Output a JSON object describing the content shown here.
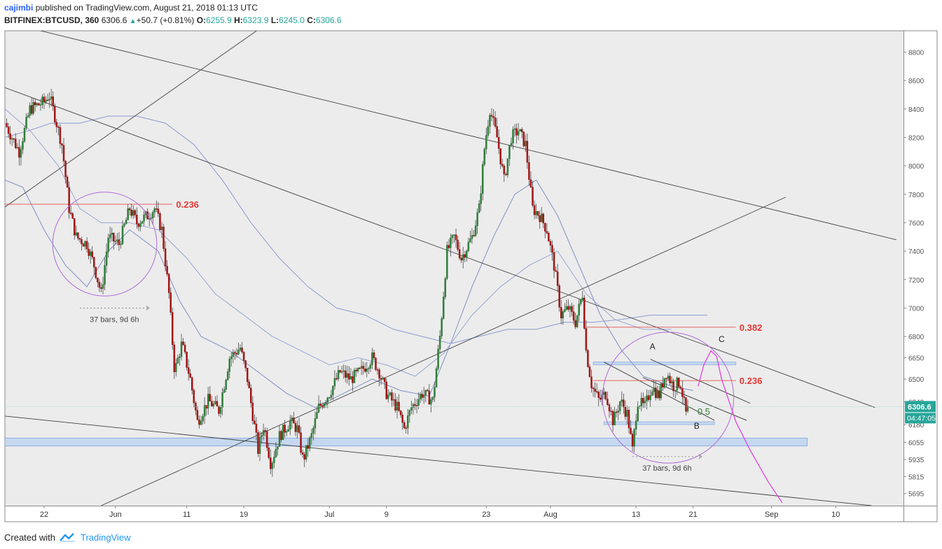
{
  "header": {
    "author": "cajimbi",
    "publish_text": "published on TradingView.com, August 21, 2018 01:13 UTC",
    "symbol": "BITFINEX:BTCUSD, 360",
    "last": "6306.6",
    "arrow": "▲",
    "change": "+50.7 (+0.81%)",
    "o_label": "O:",
    "o_value": "6255.9",
    "h_label": "H:",
    "h_value": "6323.9",
    "l_label": "L:",
    "l_value": "6245.0",
    "c_label": "C:",
    "c_value": "6306.6"
  },
  "footer": {
    "created_with": "Created with",
    "brand": "TradingView"
  },
  "chart_data": {
    "type": "candlestick",
    "title": "",
    "y_ticks": [
      8800,
      8600,
      8400,
      8200,
      8000,
      7800,
      7600,
      7400,
      7200,
      7000,
      6800,
      6650,
      6500,
      6340,
      6180,
      6055,
      5935,
      5815,
      5695
    ],
    "ylim": [
      5610,
      8950
    ],
    "x_tick_labels": [
      {
        "label": "22",
        "day": 0
      },
      {
        "label": "Jun",
        "day": 10
      },
      {
        "label": "11",
        "day": 20
      },
      {
        "label": "19",
        "day": 28
      },
      {
        "label": "Jul",
        "day": 40
      },
      {
        "label": "9",
        "day": 48
      },
      {
        "label": "23",
        "day": 62
      },
      {
        "label": "Aug",
        "day": 71
      },
      {
        "label": "13",
        "day": 83
      },
      {
        "label": "21",
        "day": 91
      },
      {
        "label": "Sep",
        "day": 102
      },
      {
        "label": "10",
        "day": 111
      }
    ],
    "xlim_days": [
      -5.5,
      120.5
    ],
    "candles_per_day": 4,
    "close_path": [
      [
        -5.5,
        8300
      ],
      [
        -3.5,
        8100
      ],
      [
        -2,
        8400
      ],
      [
        0,
        8450
      ],
      [
        0.7,
        8500
      ],
      [
        1.5,
        8350
      ],
      [
        2.5,
        8150
      ],
      [
        3.5,
        7700
      ],
      [
        4.5,
        7500
      ],
      [
        6,
        7450
      ],
      [
        7,
        7300
      ],
      [
        8,
        7100
      ],
      [
        9,
        7500
      ],
      [
        10.5,
        7450
      ],
      [
        12,
        7700
      ],
      [
        13,
        7600
      ],
      [
        14.5,
        7650
      ],
      [
        15.5,
        7700
      ],
      [
        16.5,
        7550
      ],
      [
        17.5,
        7100
      ],
      [
        18.3,
        6550
      ],
      [
        19.3,
        6750
      ],
      [
        20.5,
        6500
      ],
      [
        21.5,
        6200
      ],
      [
        23,
        6350
      ],
      [
        24.5,
        6280
      ],
      [
        26,
        6650
      ],
      [
        27.5,
        6720
      ],
      [
        28.5,
        6500
      ],
      [
        30,
        6000
      ],
      [
        30.8,
        6180
      ],
      [
        31.8,
        5900
      ],
      [
        33,
        6100
      ],
      [
        34.5,
        6200
      ],
      [
        35.5,
        6150
      ],
      [
        36.3,
        5930
      ],
      [
        37.5,
        6100
      ],
      [
        38.5,
        6300
      ],
      [
        40,
        6400
      ],
      [
        41.5,
        6550
      ],
      [
        43,
        6500
      ],
      [
        44.5,
        6560
      ],
      [
        46,
        6650
      ],
      [
        47,
        6550
      ],
      [
        48,
        6400
      ],
      [
        49.5,
        6300
      ],
      [
        50.5,
        6150
      ],
      [
        51.5,
        6300
      ],
      [
        53,
        6400
      ],
      [
        54.5,
        6350
      ],
      [
        55.5,
        6800
      ],
      [
        56.5,
        7400
      ],
      [
        57.5,
        7500
      ],
      [
        58.5,
        7350
      ],
      [
        60,
        7500
      ],
      [
        61,
        7700
      ],
      [
        61.8,
        8150
      ],
      [
        62.5,
        8400
      ],
      [
        63.5,
        8200
      ],
      [
        64.5,
        7900
      ],
      [
        65.5,
        8200
      ],
      [
        66.5,
        8250
      ],
      [
        67.5,
        8150
      ],
      [
        68.5,
        7700
      ],
      [
        69.5,
        7650
      ],
      [
        70.5,
        7550
      ],
      [
        71.5,
        7300
      ],
      [
        72.5,
        6950
      ],
      [
        73.5,
        7000
      ],
      [
        74.5,
        6900
      ],
      [
        75.5,
        7100
      ],
      [
        76,
        6700
      ],
      [
        76.8,
        6450
      ],
      [
        77.8,
        6350
      ],
      [
        78.8,
        6400
      ],
      [
        79.8,
        6200
      ],
      [
        80.8,
        6350
      ],
      [
        81.8,
        6250
      ],
      [
        82.5,
        6000
      ],
      [
        83.2,
        6350
      ],
      [
        84.2,
        6300
      ],
      [
        85.2,
        6450
      ],
      [
        86.2,
        6380
      ],
      [
        87.2,
        6550
      ],
      [
        88.2,
        6450
      ],
      [
        89.2,
        6480
      ],
      [
        90,
        6256
      ],
      [
        90.4,
        6306.6
      ]
    ],
    "moving_averages": [
      {
        "color": "#7f8fc4",
        "points": [
          [
            -5.5,
            7900
          ],
          [
            -3,
            7850
          ],
          [
            0,
            7550
          ],
          [
            3,
            7300
          ],
          [
            6,
            7150
          ],
          [
            9,
            7400
          ],
          [
            12,
            7550
          ],
          [
            16,
            7400
          ],
          [
            19,
            7050
          ],
          [
            22,
            6800
          ],
          [
            26,
            6700
          ],
          [
            30,
            6550
          ],
          [
            34,
            6400
          ],
          [
            38,
            6300
          ],
          [
            42,
            6400
          ],
          [
            46,
            6500
          ],
          [
            50,
            6420
          ],
          [
            54,
            6380
          ],
          [
            57,
            6750
          ],
          [
            60,
            7150
          ],
          [
            63,
            7500
          ],
          [
            66,
            7800
          ],
          [
            69,
            7900
          ],
          [
            72,
            7650
          ],
          [
            75,
            7300
          ],
          [
            78,
            6950
          ],
          [
            81,
            6700
          ],
          [
            84,
            6520
          ],
          [
            88,
            6450
          ],
          [
            91,
            6420
          ]
        ]
      },
      {
        "color": "#9aa6d4",
        "points": [
          [
            -5.5,
            8400
          ],
          [
            -2,
            8250
          ],
          [
            2,
            8000
          ],
          [
            5,
            7700
          ],
          [
            8,
            7600
          ],
          [
            12,
            7600
          ],
          [
            16,
            7550
          ],
          [
            20,
            7350
          ],
          [
            24,
            7100
          ],
          [
            28,
            6950
          ],
          [
            32,
            6800
          ],
          [
            36,
            6700
          ],
          [
            40,
            6600
          ],
          [
            44,
            6650
          ],
          [
            48,
            6600
          ],
          [
            52,
            6520
          ],
          [
            56,
            6680
          ],
          [
            60,
            6950
          ],
          [
            64,
            7150
          ],
          [
            68,
            7300
          ],
          [
            72,
            7400
          ],
          [
            76,
            7100
          ],
          [
            80,
            6920
          ],
          [
            84,
            6850
          ],
          [
            88,
            6850
          ]
        ]
      },
      {
        "color": "#8c9ad0",
        "points": [
          [
            -5.5,
            8200
          ],
          [
            -2,
            8250
          ],
          [
            1,
            8300
          ],
          [
            5,
            8300
          ],
          [
            9,
            8350
          ],
          [
            13,
            8350
          ],
          [
            17,
            8300
          ],
          [
            21,
            8150
          ],
          [
            25,
            7900
          ],
          [
            29,
            7600
          ],
          [
            33,
            7350
          ],
          [
            37,
            7150
          ],
          [
            41,
            7000
          ],
          [
            45,
            6950
          ],
          [
            49,
            6850
          ],
          [
            53,
            6800
          ],
          [
            57,
            6750
          ],
          [
            61,
            6800
          ],
          [
            65,
            6850
          ],
          [
            69,
            6850
          ],
          [
            73,
            6900
          ],
          [
            77,
            6900
          ],
          [
            81,
            6920
          ],
          [
            85,
            6950
          ],
          [
            89,
            6950
          ],
          [
            93,
            6950
          ]
        ]
      }
    ],
    "trendlines": [
      {
        "from": [
          -5.5,
          7710
        ],
        "to": [
          29.8,
          8950
        ]
      },
      {
        "from": [
          -0.5,
          8950
        ],
        "to": [
          119.5,
          7480
        ]
      },
      {
        "from": [
          -5.5,
          8550
        ],
        "to": [
          116.5,
          6300
        ]
      },
      {
        "from": [
          8,
          5610
        ],
        "to": [
          104,
          7780
        ]
      },
      {
        "from": [
          -5.5,
          6240
        ],
        "to": [
          116,
          5610
        ]
      }
    ],
    "support_zone": {
      "from_day": -5.5,
      "to_day": 107,
      "low": 6030,
      "high": 6085
    },
    "fib_levels": [
      {
        "label": "0.236",
        "value": 7730,
        "from_day": -5.5,
        "to_day": 18,
        "label_day": 18.5
      },
      {
        "label": "0.382",
        "value": 6865,
        "from_day": 76,
        "to_day": 97,
        "label_day": 97.5
      },
      {
        "label": "0.236",
        "value": 6490,
        "from_day": 77,
        "to_day": 97,
        "label_day": 97.5
      }
    ],
    "channel_zones": [
      {
        "from_day": 77,
        "to_day": 97,
        "value": 6610
      },
      {
        "from_day": 78.5,
        "to_day": 94,
        "value": 6190
      }
    ],
    "wedge_lines": [
      {
        "from": [
          85,
          6640
        ],
        "to": [
          99,
          6330
        ]
      },
      {
        "from": [
          84,
          6510
        ],
        "to": [
          98.5,
          6210
        ]
      },
      {
        "from": [
          78.5,
          6620
        ],
        "to": [
          94,
          6210
        ]
      }
    ],
    "circles": [
      {
        "center_day": 8.5,
        "center_value": 7450,
        "r_days": 7.3
      },
      {
        "center_day": 87.5,
        "center_value": 6370,
        "r_days": 9.2
      }
    ],
    "bar_ranges": [
      {
        "text": "37 bars, 9d 6h",
        "from_day": 5,
        "to_day": 14.7,
        "value": 7000
      },
      {
        "text": "37 bars, 9d 6h",
        "from_day": 82.5,
        "to_day": 92.2,
        "value": 5955
      }
    ],
    "wave_labels": [
      {
        "label": "A",
        "day": 85.3,
        "value": 6730
      },
      {
        "label": "B",
        "day": 91.5,
        "value": 6170
      },
      {
        "label": "C",
        "day": 95,
        "value": 6780
      },
      {
        "label": "0.5",
        "day": 92.5,
        "value": 6270
      }
    ],
    "projection": [
      [
        91.7,
        6450
      ],
      [
        92.5,
        6600
      ],
      [
        93.5,
        6700
      ],
      [
        94.3,
        6660
      ],
      [
        95,
        6500
      ],
      [
        97,
        6200
      ],
      [
        99,
        6000
      ],
      [
        101.5,
        5780
      ],
      [
        103.5,
        5630
      ]
    ],
    "last_price": {
      "value": 6306.6,
      "label": "6306.6",
      "countdown": "04:47:05",
      "color": "#26a69a"
    },
    "colors": {
      "up": "#2e7d3a",
      "down": "#a11414",
      "fib": "#e53935",
      "circle": "#b06ad8",
      "projection": "#e040e0",
      "zone": "#c5d8f0",
      "trend": "#424242"
    }
  }
}
